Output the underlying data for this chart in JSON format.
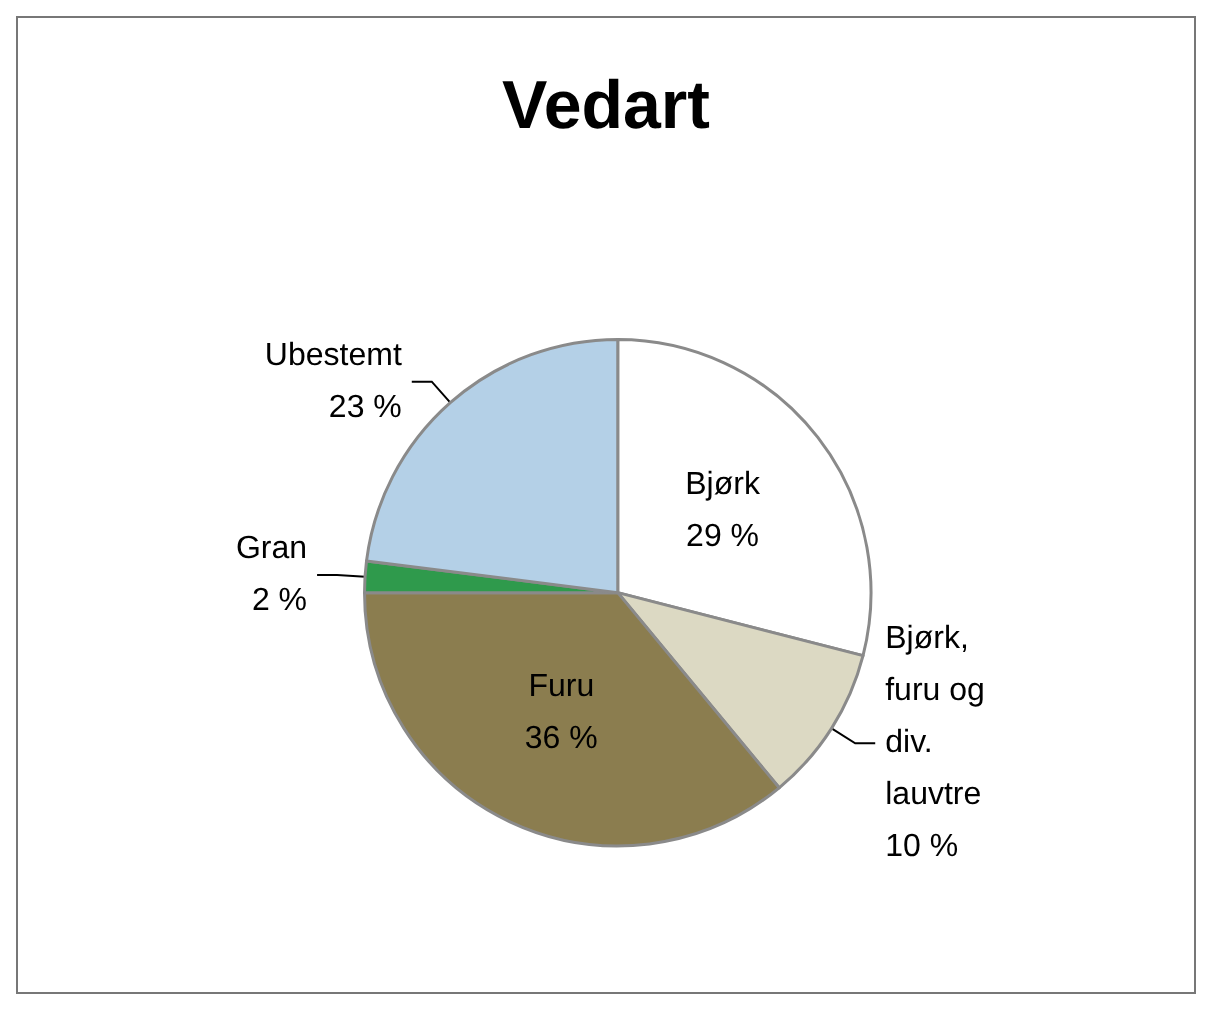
{
  "chart_data": {
    "type": "pie",
    "title": "Vedart",
    "categories": [
      "Bjørk",
      "Bjørk, furu og div. lauvtre",
      "Furu",
      "Gran",
      "Ubestemt"
    ],
    "values": [
      29,
      10,
      36,
      2,
      23
    ],
    "value_labels": [
      "29 %",
      "10 %",
      "36 %",
      "2 %",
      "23 %"
    ],
    "colors": [
      "#ffffff",
      "#dcd9c3",
      "#8b7d4f",
      "#2f9a4c",
      "#b4d0e7"
    ]
  }
}
